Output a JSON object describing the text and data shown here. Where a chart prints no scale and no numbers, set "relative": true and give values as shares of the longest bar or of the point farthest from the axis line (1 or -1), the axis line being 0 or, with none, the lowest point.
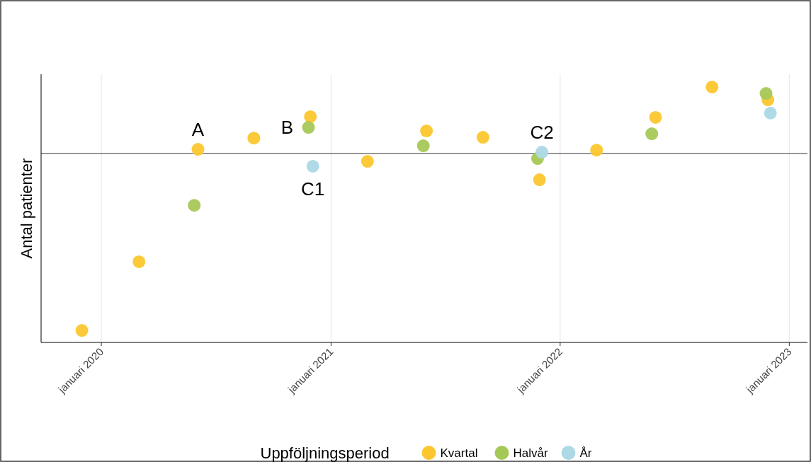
{
  "chart_data": {
    "type": "scatter",
    "relative": true,
    "ylabel": "Antal patienter",
    "legend_title": "Uppföljningsperiod",
    "legend": "bottom",
    "grid": "x",
    "tick_labels": "x",
    "marker": "circle",
    "xlim": [
      "2019-09-27",
      "2023-01-30"
    ],
    "xticks": [
      {
        "value": "2020-01-01",
        "label": "januari 2020"
      },
      {
        "value": "2021-01-01",
        "label": "januari 2021"
      },
      {
        "value": "2022-01-01",
        "label": "januari 2022"
      },
      {
        "value": "2023-01-01",
        "label": "januari 2023"
      }
    ],
    "ref_lines": [
      {
        "axis": "y",
        "value": 0.74,
        "color": "#333333"
      }
    ],
    "annotations": [
      {
        "text": "A",
        "x": "2020-06-03",
        "y": 0.756
      },
      {
        "text": "B",
        "x": "2020-11-26",
        "y": 0.842
      },
      {
        "text": "C1",
        "x": "2020-12-03",
        "y": 0.69
      },
      {
        "text": "C2",
        "x": "2021-12-03",
        "y": 0.745
      }
    ],
    "series": [
      {
        "name": "Kvartal",
        "color": "#fcc72e",
        "x": [
          "2019-12-01",
          "2020-03-01",
          "2020-06-03",
          "2020-08-31",
          "2020-11-29",
          "2021-02-28",
          "2021-06-02",
          "2021-08-31",
          "2021-11-29",
          "2022-02-28",
          "2022-06-02",
          "2022-08-31",
          "2022-11-28"
        ],
        "values": [
          0.047,
          0.316,
          0.756,
          0.8,
          0.884,
          0.709,
          0.828,
          0.803,
          0.637,
          0.753,
          0.881,
          1.0,
          0.95
        ]
      },
      {
        "name": "Halvår",
        "color": "#a6c858",
        "x": [
          "2020-05-28",
          "2020-11-26",
          "2021-05-28",
          "2021-11-26",
          "2022-05-27",
          "2022-11-25"
        ],
        "values": [
          0.537,
          0.842,
          0.77,
          0.72,
          0.817,
          0.975
        ]
      },
      {
        "name": "År",
        "color": "#add8e6",
        "x": [
          "2020-12-03",
          "2021-12-03",
          "2022-12-02"
        ],
        "values": [
          0.69,
          0.745,
          0.898
        ]
      }
    ]
  }
}
